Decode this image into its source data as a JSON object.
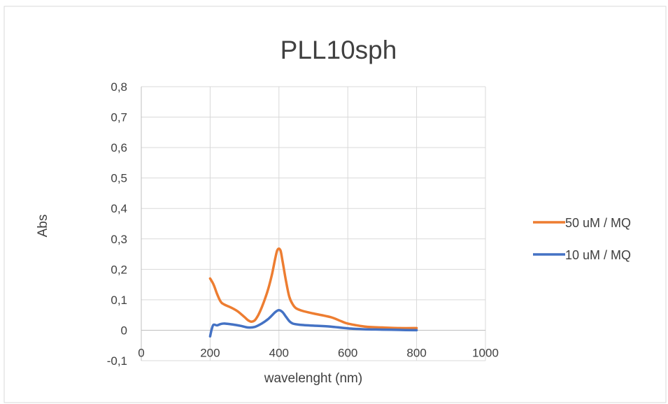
{
  "chart_data": {
    "type": "line",
    "title": "PLL10sph",
    "xlabel": "wavelenght (nm)",
    "ylabel": "Abs",
    "xlim": [
      0,
      1000
    ],
    "ylim": [
      -0.1,
      0.8
    ],
    "xticks": [
      0,
      200,
      400,
      600,
      800,
      1000
    ],
    "xtick_labels": [
      "0",
      "200",
      "400",
      "600",
      "800",
      "1000"
    ],
    "yticks": [
      -0.1,
      0,
      0.1,
      0.2,
      0.3,
      0.4,
      0.5,
      0.6,
      0.7,
      0.8
    ],
    "ytick_labels": [
      "-0,1",
      "0",
      "0,1",
      "0,2",
      "0,3",
      "0,4",
      "0,5",
      "0,6",
      "0,7",
      "0,8"
    ],
    "grid": true,
    "legend_position": "right",
    "series": [
      {
        "name": "50 uM / MQ",
        "color": "#ED7D31",
        "x": [
          200,
          210,
          220,
          230,
          240,
          260,
          280,
          300,
          310,
          320,
          330,
          340,
          350,
          360,
          370,
          380,
          390,
          395,
          400,
          405,
          410,
          420,
          430,
          440,
          450,
          470,
          500,
          550,
          580,
          600,
          650,
          700,
          750,
          800
        ],
        "y": [
          0.17,
          0.15,
          0.12,
          0.095,
          0.085,
          0.075,
          0.062,
          0.043,
          0.033,
          0.028,
          0.033,
          0.05,
          0.075,
          0.105,
          0.14,
          0.185,
          0.24,
          0.262,
          0.268,
          0.26,
          0.23,
          0.165,
          0.11,
          0.085,
          0.072,
          0.063,
          0.055,
          0.043,
          0.03,
          0.022,
          0.012,
          0.009,
          0.007,
          0.007
        ]
      },
      {
        "name": "10 uM / MQ",
        "color": "#4472C4",
        "x": [
          200,
          205,
          210,
          220,
          230,
          240,
          250,
          270,
          290,
          310,
          330,
          350,
          370,
          390,
          400,
          410,
          420,
          430,
          440,
          460,
          500,
          550,
          600,
          650,
          700,
          750,
          800
        ],
        "y": [
          -0.02,
          0.005,
          0.018,
          0.016,
          0.02,
          0.022,
          0.021,
          0.018,
          0.014,
          0.009,
          0.011,
          0.022,
          0.038,
          0.06,
          0.066,
          0.06,
          0.045,
          0.03,
          0.022,
          0.018,
          0.015,
          0.012,
          0.006,
          0.003,
          0.002,
          0.001,
          0.0
        ]
      }
    ]
  }
}
